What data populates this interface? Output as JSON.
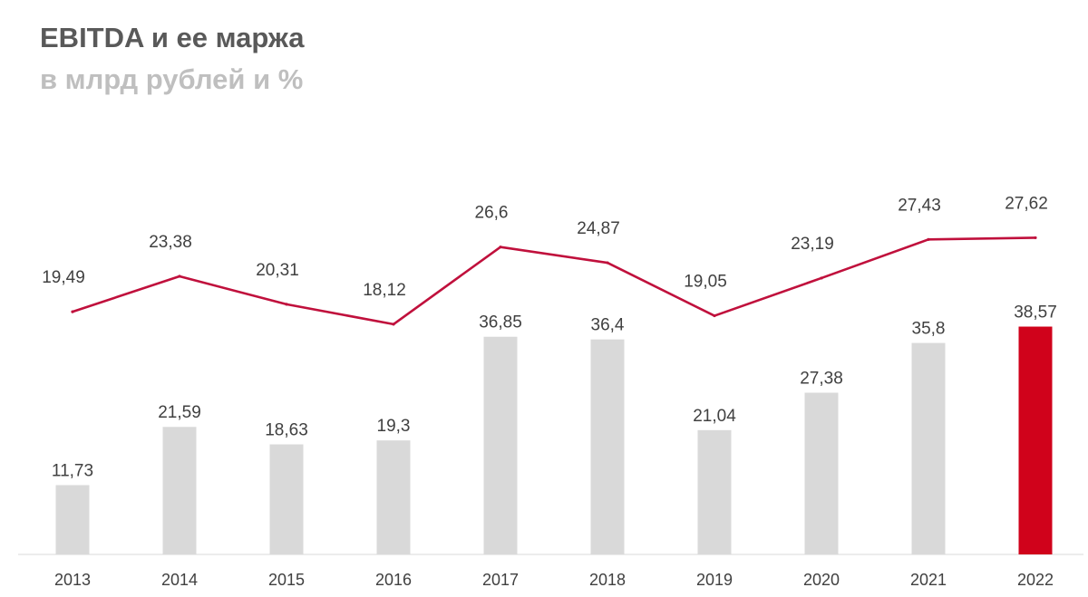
{
  "title": "EBITDA и ее маржа",
  "subtitle": "в млрд рублей и %",
  "colors": {
    "bar": "#d9d9d9",
    "bar_highlight": "#d0021b",
    "line": "#c0103c",
    "axis": "#d9d9d9"
  },
  "chart_data": {
    "type": "bar",
    "title": "EBITDA и ее маржа",
    "subtitle": "в млрд рублей и %",
    "categories": [
      "2013",
      "2014",
      "2015",
      "2016",
      "2017",
      "2018",
      "2019",
      "2020",
      "2021",
      "2022"
    ],
    "bar_labels": [
      "11,73",
      "21,59",
      "18,63",
      "19,3",
      "36,85",
      "36,4",
      "21,04",
      "27,38",
      "35,8",
      "38,57"
    ],
    "line_labels": [
      "19,49",
      "23,38",
      "20,31",
      "18,12",
      "26,6",
      "24,87",
      "19,05",
      "23,19",
      "27,43",
      "27,62"
    ],
    "series": [
      {
        "name": "EBITDA",
        "type": "bar",
        "values": [
          11.73,
          21.59,
          18.63,
          19.3,
          36.85,
          36.4,
          21.04,
          27.38,
          35.8,
          38.57
        ],
        "highlight_index": 9
      },
      {
        "name": "Маржа EBITDA, %",
        "type": "line",
        "values": [
          19.49,
          23.38,
          20.31,
          18.12,
          26.6,
          24.87,
          19.05,
          23.19,
          27.43,
          27.62
        ]
      }
    ],
    "xlabel": "",
    "ylabel": "",
    "grid": false,
    "legend": "none"
  }
}
